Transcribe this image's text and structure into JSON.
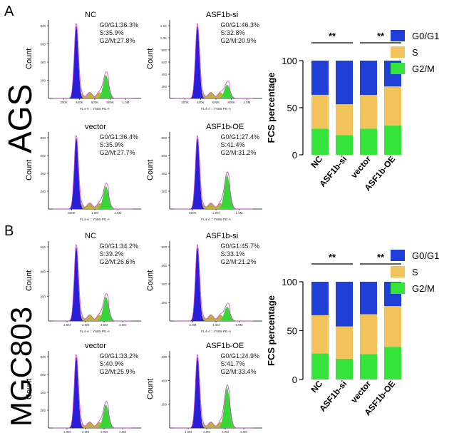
{
  "panels": [
    {
      "panel_label": "A",
      "cell_line": "AGS",
      "histograms": [
        {
          "title": "NC",
          "stats": [
            "G0/G1:36.3%",
            "S:35.9%",
            "G2/M:27.8%"
          ],
          "ylabel": "Count",
          "yticks": [
            "200",
            "400",
            "600",
            "800"
          ],
          "xticks": [
            "200K",
            "400K",
            "600K",
            "800K",
            "1.0M"
          ],
          "xlabel": "FL4-A :: Y585-PE-A"
        },
        {
          "title": "ASF1b-si",
          "stats": [
            "G0/G1:46.3%",
            "S:32.8%",
            "G2/M:20.9%"
          ],
          "ylabel": "Count",
          "yticks": [
            "200",
            "400",
            "600",
            "800",
            "1.0K",
            "1.2K"
          ],
          "xticks": [
            "200K",
            "400K",
            "600K",
            "800K",
            "1.0M"
          ],
          "xlabel": "FL4-A :: Y585-PE-A"
        },
        {
          "title": "vector",
          "stats": [
            "G0/G1:36.4%",
            "S:35.9%",
            "G2/M:27.7%"
          ],
          "ylabel": "Count",
          "yticks": [
            "200",
            "400",
            "600",
            "800"
          ],
          "xticks": [
            "500K",
            "1.0M",
            "1.5M"
          ],
          "xlabel": "FL4-A :: Y585-PE-A"
        },
        {
          "title": "ASF1b-OE",
          "stats": [
            "G0/G1:27.4%",
            "S:41.4%",
            "G2/M:31.2%"
          ],
          "ylabel": "Count",
          "yticks": [
            "200",
            "400",
            "600",
            "800"
          ],
          "xticks": [
            "500K",
            "1.0M",
            "1.5M"
          ],
          "xlabel": "FL4-A :: Y585-PE-A"
        }
      ]
    },
    {
      "panel_label": "B",
      "cell_line": "MGC803",
      "histograms": [
        {
          "title": "NC",
          "stats": [
            "G0/G1:34.2%",
            "S:39.2%",
            "G2/M:26.6%"
          ],
          "ylabel": "Count",
          "yticks": [
            "200",
            "400",
            "600"
          ],
          "xticks": [
            "1.0M",
            "2.0M",
            "3.0M",
            "4.0M"
          ],
          "xlabel": "FL4-A :: Y585-PE-A"
        },
        {
          "title": "ASF1b-si",
          "stats": [
            "G0/G1:45.7%",
            "S:33.1%",
            "G2/M:21.2%"
          ],
          "ylabel": "Count",
          "yticks": [
            "200",
            "400",
            "600",
            "800"
          ],
          "xticks": [
            "2.0M",
            "4.0M",
            "6.0M"
          ],
          "xlabel": "FL4-A :: Y585-PE-A"
        },
        {
          "title": "vector",
          "stats": [
            "G0/G1:33.2%",
            "S:40.9%",
            "G2/M:25.9%"
          ],
          "ylabel": "Count",
          "yticks": [
            "200",
            "400",
            "600",
            "800"
          ],
          "xticks": [
            "1.0M",
            "2.0M",
            "3.0M",
            "4.0M"
          ],
          "xlabel": "FL4-A :: Y585-PE-A"
        },
        {
          "title": "ASF1b-OE",
          "stats": [
            "G0/G1:24.9%",
            "S:41.7%",
            "G2/M:33.4%"
          ],
          "ylabel": "Count",
          "yticks": [
            "200",
            "400",
            "600"
          ],
          "xticks": [
            "1.0M",
            "2.0M",
            "3.0M",
            "4.0M"
          ],
          "xlabel": "FL4-A :: Y585-PE-A"
        }
      ]
    }
  ],
  "chart_data": [
    {
      "type": "bar",
      "stacked": true,
      "panel": "A",
      "categories": [
        "NC",
        "ASF1b-si",
        "vector",
        "ASF1b-OE"
      ],
      "series": [
        {
          "name": "G2/M",
          "values": [
            27.8,
            20.9,
            27.7,
            31.2
          ]
        },
        {
          "name": "S",
          "values": [
            35.9,
            32.8,
            35.9,
            41.4
          ]
        },
        {
          "name": "G0/G1",
          "values": [
            36.3,
            46.3,
            36.4,
            27.4
          ]
        }
      ],
      "ylabel": "FCS percentage",
      "ylim": [
        0,
        100
      ],
      "yticks": [
        0,
        50,
        100
      ],
      "significance": [
        {
          "between": [
            "NC",
            "ASF1b-si"
          ],
          "label": "**"
        },
        {
          "between": [
            "vector",
            "ASF1b-OE"
          ],
          "label": "**"
        }
      ],
      "legend_position": "top-right"
    },
    {
      "type": "bar",
      "stacked": true,
      "panel": "B",
      "categories": [
        "NC",
        "ASF1b-si",
        "vector",
        "ASF1b-OE"
      ],
      "series": [
        {
          "name": "G2/M",
          "values": [
            26.6,
            21.2,
            25.9,
            33.4
          ]
        },
        {
          "name": "S",
          "values": [
            39.2,
            33.1,
            40.9,
            41.7
          ]
        },
        {
          "name": "G0/G1",
          "values": [
            34.2,
            45.7,
            33.2,
            24.9
          ]
        }
      ],
      "ylabel": "FCS percentage",
      "ylim": [
        0,
        100
      ],
      "yticks": [
        0,
        50,
        100
      ],
      "significance": [
        {
          "between": [
            "NC",
            "ASF1b-si"
          ],
          "label": "**"
        },
        {
          "between": [
            "vector",
            "ASF1b-OE"
          ],
          "label": "**"
        }
      ],
      "legend_position": "top-right"
    }
  ],
  "legend": [
    {
      "name": "G0/G1",
      "color": "#1f3fd6"
    },
    {
      "name": "S",
      "color": "#f2c35a"
    },
    {
      "name": "G2/M",
      "color": "#35e33a"
    }
  ],
  "colors": {
    "blue_peak": "#2a1fd8",
    "s_phase": "#b9a82a",
    "g2_peak": "#39d639",
    "envelope": "#cc44cc"
  }
}
